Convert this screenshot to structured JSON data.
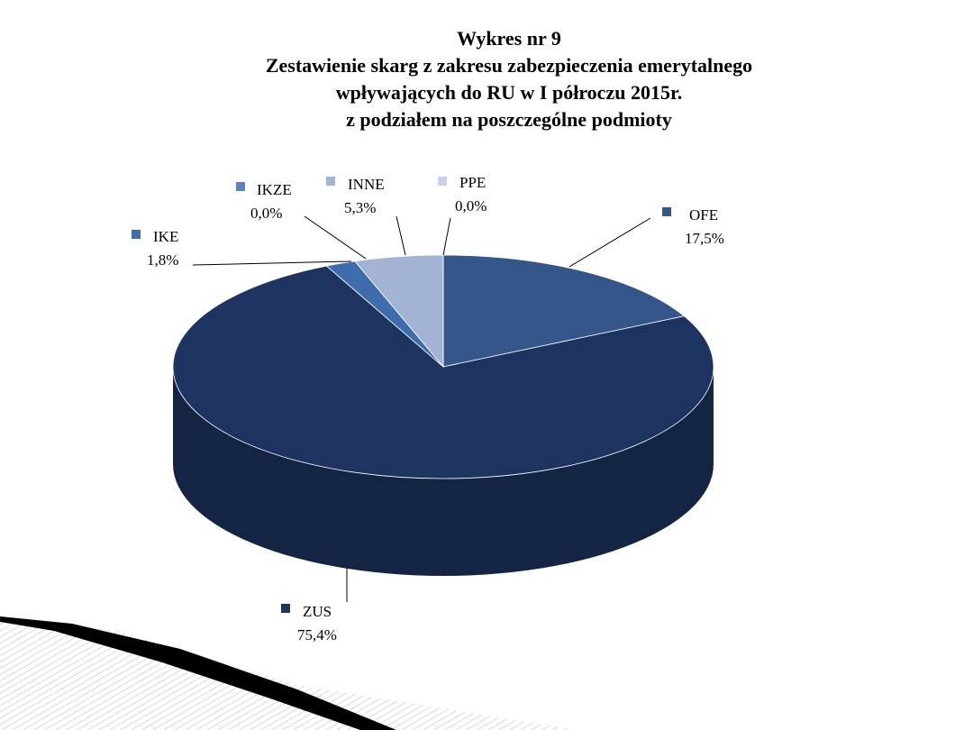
{
  "chart_data": {
    "type": "pie3d",
    "title": "Wykres nr 9",
    "subtitle": [
      "Zestawienie skarg z zakresu zabezpieczenia emerytalnego",
      "wpływających do RU w I półroczu 2015r.",
      "z podziałem na poszczególne podmioty"
    ],
    "categories": [
      "OFE",
      "ZUS",
      "IKE",
      "IKZE",
      "INNE",
      "PPE"
    ],
    "values": [
      17.5,
      75.4,
      1.8,
      0.0,
      5.3,
      0.0
    ],
    "value_labels": [
      "17,5%",
      "75,4%",
      "1,8%",
      "0,0%",
      "5,3%",
      "0,0%"
    ],
    "colors": [
      "#34568a",
      "#1d3460",
      "#3d6dad",
      "#5a84bd",
      "#a3b3d3",
      "#c9d3e7"
    ]
  }
}
